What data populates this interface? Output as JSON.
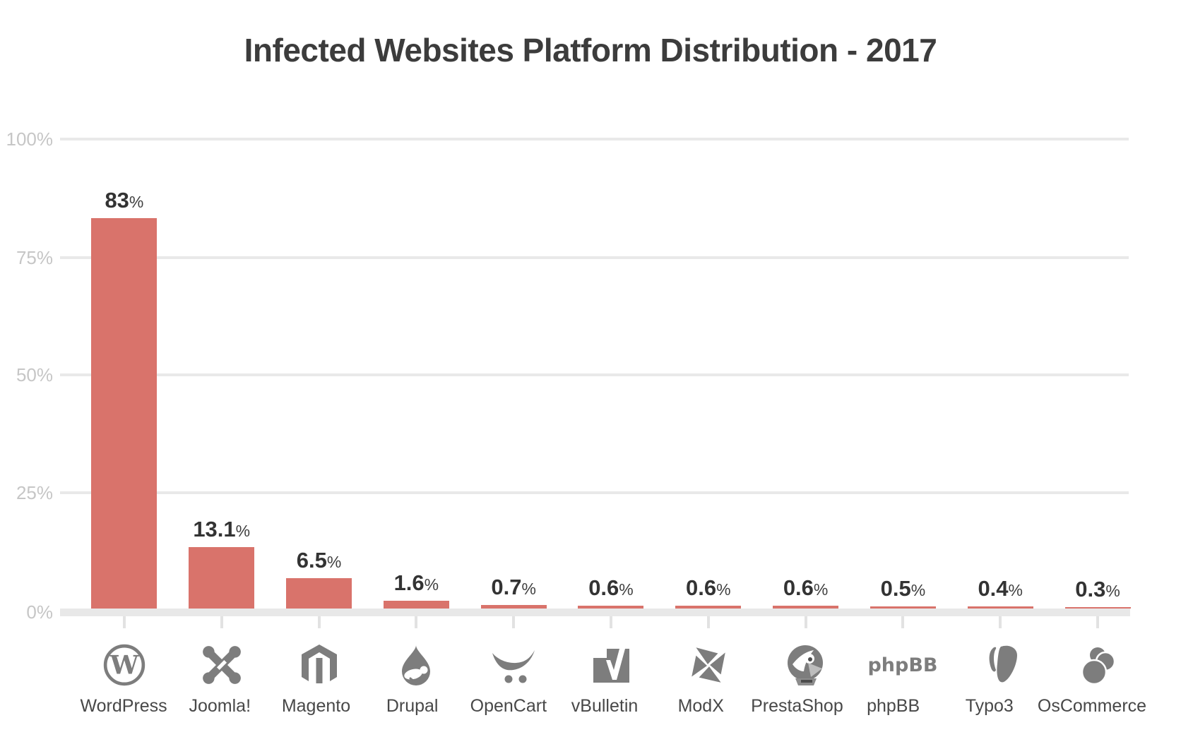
{
  "title": "Infected Websites Platform Distribution - 2017",
  "chart": {
    "percent_suffix": "%",
    "bar_color": "#d9736b",
    "y_axis_labels": {
      "p100": "100%",
      "p75": "75%",
      "p50": "50%",
      "p25": "25%",
      "p0": "0%"
    }
  },
  "platforms": [
    {
      "label": "WordPress",
      "value": 83,
      "value_label": "83",
      "icon": "wordpress-icon"
    },
    {
      "label": "Joomla!",
      "value": 13.1,
      "value_label": "13.1",
      "icon": "joomla-icon"
    },
    {
      "label": "Magento",
      "value": 6.5,
      "value_label": "6.5",
      "icon": "magento-icon"
    },
    {
      "label": "Drupal",
      "value": 1.6,
      "value_label": "1.6",
      "icon": "drupal-icon"
    },
    {
      "label": "OpenCart",
      "value": 0.7,
      "value_label": "0.7",
      "icon": "opencart-icon"
    },
    {
      "label": "vBulletin",
      "value": 0.6,
      "value_label": "0.6",
      "icon": "vbulletin-icon"
    },
    {
      "label": "ModX",
      "value": 0.6,
      "value_label": "0.6",
      "icon": "modx-icon"
    },
    {
      "label": "PrestaShop",
      "value": 0.6,
      "value_label": "0.6",
      "icon": "prestashop-icon"
    },
    {
      "label": "phpBB",
      "value": 0.5,
      "value_label": "0.5",
      "icon": "phpbb-icon"
    },
    {
      "label": "Typo3",
      "value": 0.4,
      "value_label": "0.4",
      "icon": "typo3-icon"
    },
    {
      "label": "OsCommerce",
      "value": 0.3,
      "value_label": "0.3",
      "icon": "oscommerce-icon"
    }
  ],
  "chart_data": {
    "type": "bar",
    "title": "Infected Websites Platform Distribution - 2017",
    "categories": [
      "WordPress",
      "Joomla!",
      "Magento",
      "Drupal",
      "OpenCart",
      "vBulletin",
      "ModX",
      "PrestaShop",
      "phpBB",
      "Typo3",
      "OsCommerce"
    ],
    "values": [
      83,
      13.1,
      6.5,
      1.6,
      0.7,
      0.6,
      0.6,
      0.6,
      0.5,
      0.4,
      0.3
    ],
    "data_labels": [
      "83%",
      "13.1%",
      "6.5%",
      "1.6%",
      "0.7%",
      "0.6%",
      "0.6%",
      "0.6%",
      "0.5%",
      "0.4%",
      "0.3%"
    ],
    "xlabel": "",
    "ylabel": "",
    "ylim": [
      0,
      100
    ],
    "yticks": [
      "0%",
      "25%",
      "50%",
      "75%",
      "100%"
    ],
    "grid": true,
    "legend": false,
    "bar_color": "#d9736b"
  }
}
